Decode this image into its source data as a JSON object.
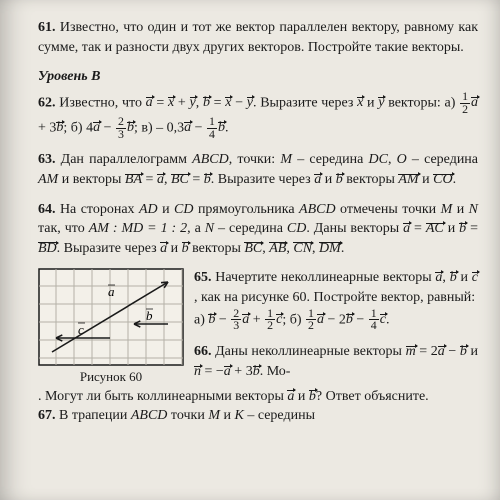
{
  "p61": {
    "num": "61.",
    "text": "Известно, что один и тот же вектор параллелен вектору, равному как сумме, так и разности двух других векторов. Постройте такие векторы."
  },
  "levelB": "Уровень В",
  "p62": {
    "num": "62.",
    "lead": "Известно, что ",
    "tail1": ". Выразите через ",
    "tail2": " векторы: а) ",
    "between": "; б) ",
    "between2": "; в) ",
    "end": "."
  },
  "p63": {
    "num": "63.",
    "t1": "Дан параллелограмм ",
    "abcd": "ABCD",
    "t2": ", точки: ",
    "m": "M",
    "t3": " – середина ",
    "dc": "DC",
    "t4": ", ",
    "o": "O",
    "t5": " – середина ",
    "am": "AM",
    "t6": " и векторы ",
    "t7": ". Выразите через ",
    "and": " и ",
    "t8": " векторы ",
    "t9": "."
  },
  "p64": {
    "num": "64.",
    "t1": "На сторонах ",
    "ad": "AD",
    "and1": " и ",
    "cd": "CD",
    "t2": " прямоугольника ",
    "abcd": "ABCD",
    "t3": " отмечены точки ",
    "m": "M",
    "and2": " и ",
    "n": "N",
    "t4": " так, что ",
    "r1": "AM : MD = 1 : 2",
    "t5": ", а ",
    "t6": " – середина ",
    "t7": ". Даны векторы ",
    "t8": ". Выразите через ",
    "and3": " и ",
    "t9": " векторы ",
    "sep": ", ",
    "t10": "."
  },
  "p65": {
    "num": "65.",
    "t1": "Начертите неколлинеарные векторы ",
    "sep": ", ",
    "and": " и ",
    "t2": ", как на рисунке 60. Постройте вектор, равный:",
    "t3": "а) ",
    "t4": "; б) ",
    "end": "."
  },
  "p66": {
    "num": "66.",
    "t1": "Даны неколлинеарные векторы ",
    "and": " и ",
    "t2": ". Могут ли быть коллинеарными векторы ",
    "t3": "? Ответ объясните."
  },
  "p67": {
    "num": "67.",
    "t1": "В трапеции ",
    "abcd": "ABCD",
    "t2": " точки ",
    "m": "M",
    "and": " и ",
    "k": "K",
    "t3": " – середины"
  },
  "figure": {
    "caption": "Рисунок 60",
    "labels": {
      "a": "a",
      "b": "b",
      "c": "c"
    },
    "style": {
      "width": 146,
      "height": 98,
      "grid_color": "#b5b1a8",
      "stroke": "#1a1a1a",
      "stroke_width": 1.6,
      "cell": 18
    }
  }
}
